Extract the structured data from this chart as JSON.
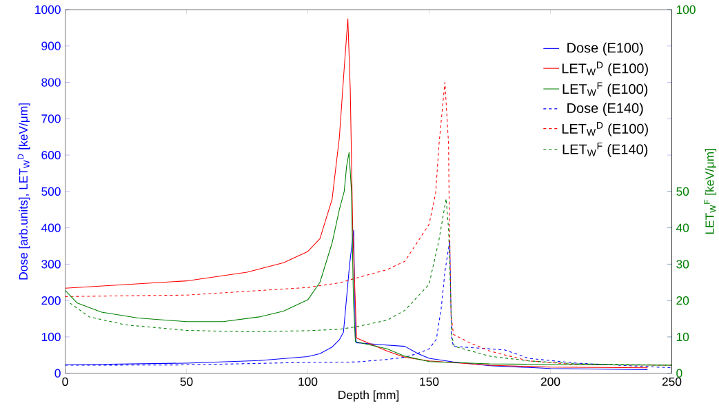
{
  "chart_data": {
    "type": "line",
    "xlabel": "Depth [mm]",
    "ylabel": "Dose [arb.units], LET$_{W}$$^{D}$ [keV/μm]",
    "y2label": "LET$_{W}$$^{F}$ [keV/μm]",
    "xlim": [
      0,
      250
    ],
    "xticks": [
      0,
      50,
      100,
      150,
      200,
      250
    ],
    "ylim": [
      0,
      1000
    ],
    "yticks": [
      0,
      100,
      200,
      300,
      400,
      500,
      600,
      700,
      800,
      900,
      1000
    ],
    "y2lim": [
      0,
      100
    ],
    "y2ticks": [
      0,
      10,
      20,
      30,
      40,
      50,
      100
    ],
    "legend": "top right",
    "marker": "none",
    "series": [
      {
        "name": "Dose (E100)",
        "color": "#0000ff",
        "line_style": "solid",
        "x": [
          0,
          50,
          80,
          100,
          105,
          110,
          113,
          114.7,
          117.2,
          118.9,
          119.6,
          120,
          129.3,
          140,
          145.4,
          150,
          160,
          175,
          200,
          240
        ],
        "values": [
          23,
          28,
          35,
          46,
          54,
          72,
          92,
          113,
          298,
          394,
          100,
          84,
          79,
          74,
          54,
          41,
          31,
          21,
          13,
          10
        ]
      },
      {
        "name": "LET$_{W}$$^{D}$ (E100)",
        "color": "#ff0000",
        "line_style": "solid",
        "x": [
          0,
          50,
          75,
          90,
          100,
          105,
          110,
          113,
          115,
          116.5,
          117.5,
          118.5,
          120.1,
          132.7,
          140,
          150,
          175,
          200,
          240
        ],
        "values": [
          234,
          254,
          278,
          304,
          335,
          370,
          478,
          648,
          839,
          975,
          780,
          400,
          97,
          61,
          44,
          34,
          22,
          17,
          15
        ]
      },
      {
        "name": "LET$_{W}$$^{F}$ (E100)",
        "color": "#008000",
        "line_style": "solid",
        "axis": "y2",
        "x": [
          0,
          5,
          15,
          30,
          50,
          65,
          80,
          90,
          100,
          105,
          110,
          113,
          115,
          116,
          117,
          118,
          118.8,
          119.6,
          132.7,
          140,
          150,
          175,
          200,
          250
        ],
        "values": [
          22.8,
          19.3,
          16.8,
          15.2,
          14.2,
          14.2,
          15.5,
          17.1,
          20.2,
          25.0,
          35.8,
          45,
          50,
          57,
          60.7,
          50,
          20,
          8.7,
          6.7,
          4.7,
          3.2,
          2.6,
          2.4,
          2.2
        ]
      },
      {
        "name": "Dose (E140)",
        "color": "#0000ff",
        "line_style": "dashed",
        "x": [
          0,
          50,
          100,
          120,
          132.7,
          140,
          145,
          150,
          153,
          155,
          156.5,
          158.5,
          159.2,
          160,
          181.3,
          191,
          210.5,
          250
        ],
        "values": [
          22,
          23,
          30,
          31,
          38,
          44,
          54,
          67,
          94,
          180,
          279,
          365,
          100,
          74,
          64,
          41,
          28,
          15
        ]
      },
      {
        "name": "LET$_{W}$$^{D}$ (E100)",
        "color": "#ff0000",
        "line_style": "dashed",
        "x": [
          0,
          50,
          100,
          113.3,
          120,
          132.7,
          140,
          150,
          152.7,
          154.1,
          156.5,
          158,
          158.2,
          159,
          160,
          166.7,
          175,
          191,
          210.5,
          250
        ],
        "values": [
          211,
          215,
          236,
          249,
          262,
          285,
          308,
          410,
          496,
          632,
          800,
          632,
          496,
          166,
          107,
          84,
          61,
          34,
          24,
          22
        ]
      },
      {
        "name": "LET$_{W}$$^{F}$ (E140)",
        "color": "#008000",
        "line_style": "dashed",
        "axis": "y2",
        "x": [
          2,
          10,
          25,
          50,
          75,
          100,
          113,
          120,
          132.7,
          140,
          150,
          154,
          157,
          158,
          159.4,
          160.4,
          175,
          191,
          210.5,
          250
        ],
        "values": [
          19.3,
          15.5,
          13.3,
          11.8,
          11.4,
          11.7,
          12.1,
          12.8,
          14.6,
          17.3,
          24.5,
          36.5,
          48.0,
          39.8,
          10.0,
          7.4,
          4.7,
          3.4,
          2.6,
          2.2
        ]
      }
    ]
  }
}
